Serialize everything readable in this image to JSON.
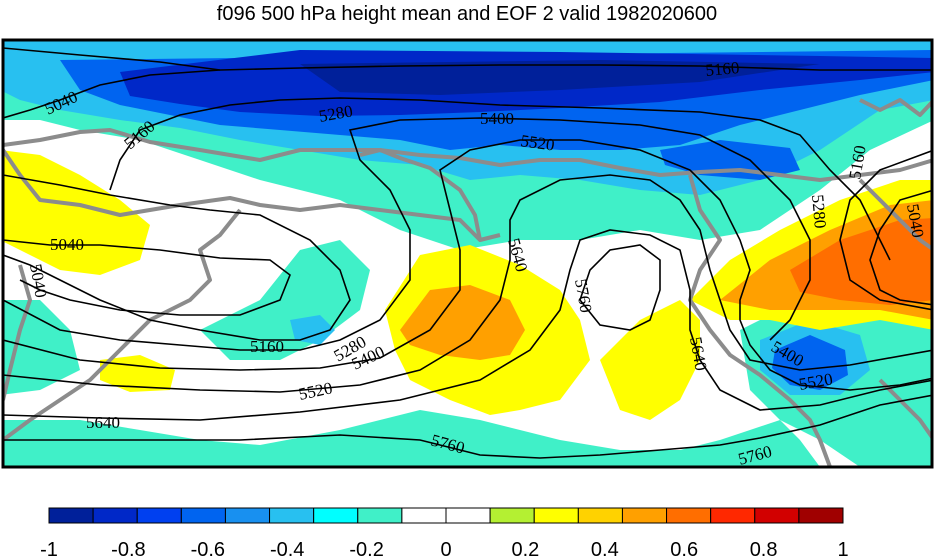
{
  "title": "f096 500 hPa height mean and EOF 2 valid 1982020600",
  "contour_labels": [
    "5040",
    "5160",
    "5280",
    "5400",
    "5520",
    "5640",
    "5760"
  ],
  "colorbar": {
    "ticks": [
      "-1",
      "-0.8",
      "-0.6",
      "-0.4",
      "-0.2",
      "0",
      "0.2",
      "0.4",
      "0.6",
      "0.8",
      "1"
    ],
    "colors": [
      "#00209a",
      "#0028c8",
      "#0040f0",
      "#0064f0",
      "#1890f0",
      "#28c0f0",
      "#00ffff",
      "#40f0c8",
      "#ffffff",
      "#ffffff",
      "#b4f032",
      "#ffff00",
      "#ffd200",
      "#ffa000",
      "#ff6e00",
      "#ff2800",
      "#d20000",
      "#a00000"
    ]
  },
  "field_colors": {
    "dark_blue": "#0028c8",
    "blue": "#0064f0",
    "light_blue": "#28c0f0",
    "aqua": "#40f0c8",
    "yellow": "#ffff00",
    "orange": "#ffa000",
    "red_orange": "#ff6e00",
    "coast": "#8c8c8c"
  }
}
